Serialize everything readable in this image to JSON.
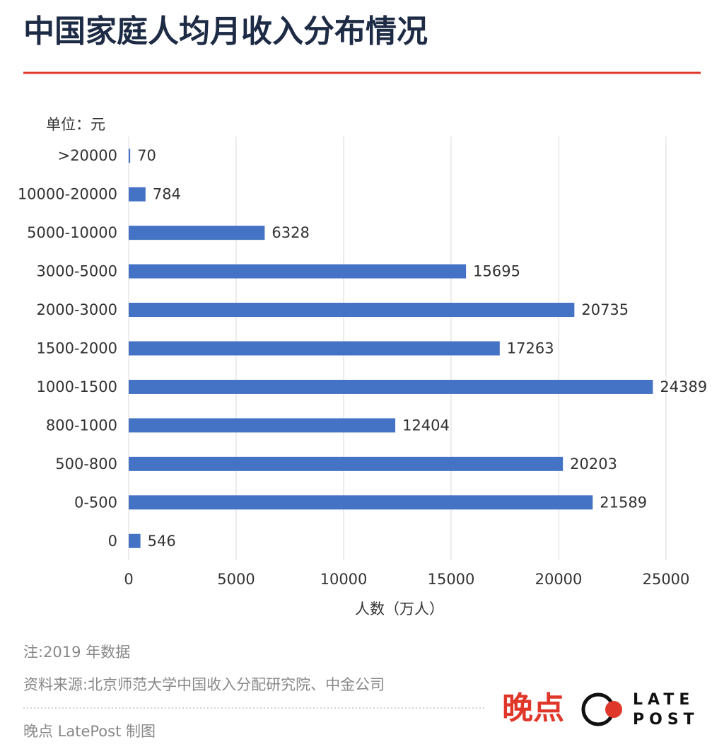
{
  "chart_data": {
    "type": "bar",
    "orientation": "horizontal",
    "title": "中国家庭人均月收入分布情况",
    "unit_label": "单位：元",
    "x_label": "人数（万人）",
    "categories": [
      ">20000",
      "10000-20000",
      "5000-10000",
      "3000-5000",
      "2000-3000",
      "1500-2000",
      "1000-1500",
      "800-1000",
      "500-800",
      "0-500",
      "0"
    ],
    "values": [
      70,
      784,
      6328,
      15695,
      20735,
      17263,
      24389,
      12404,
      20203,
      21589,
      546
    ],
    "color": "#4472c4",
    "xlim": [
      0,
      25000
    ],
    "xticks": [
      0,
      5000,
      10000,
      15000,
      20000,
      25000
    ],
    "grid": true
  },
  "footer": {
    "note": "注:2019 年数据",
    "source": "资料来源:北京师范大学中国收入分配研究院、中金公司",
    "credit": "晚点 LatePost 制图"
  },
  "logo": {
    "name": "晚点",
    "late": "LATE",
    "post": "POST"
  }
}
